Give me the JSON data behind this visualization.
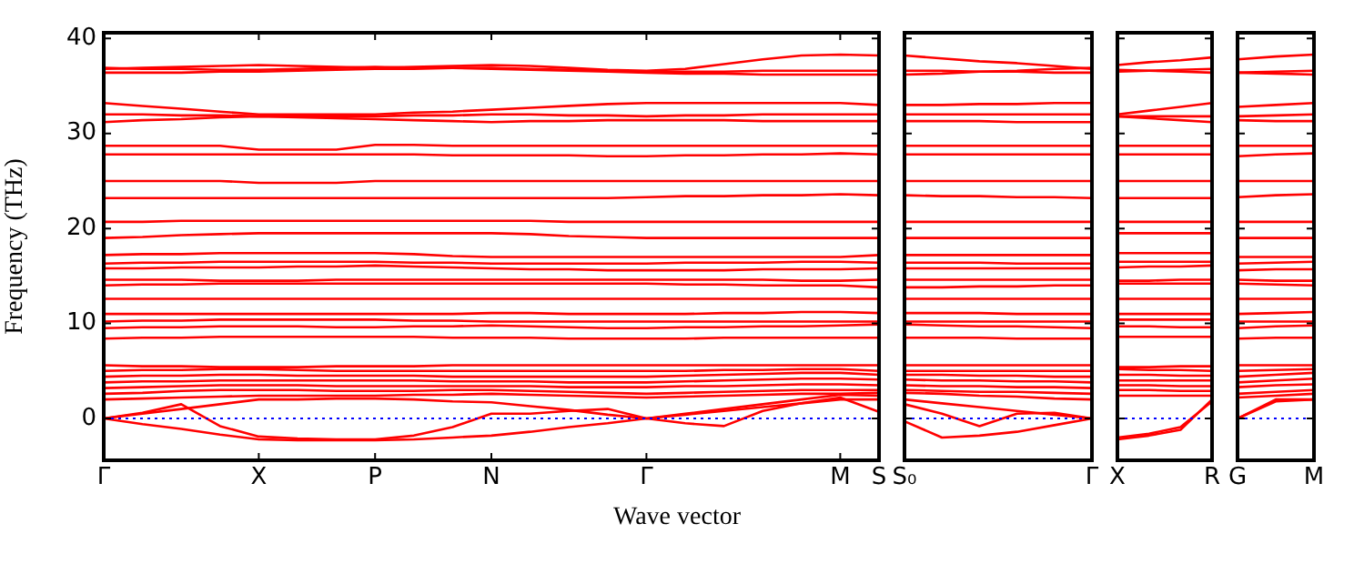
{
  "chart_data": [
    {
      "type": "line",
      "xlabel": "Wave vector",
      "ylabel": "Frequency (THz)",
      "categories": [
        "Γ",
        null,
        null,
        null,
        "X",
        null,
        null,
        "P",
        null,
        null,
        "N",
        null,
        null,
        null,
        "Γ",
        null,
        null,
        null,
        null,
        "M",
        "S"
      ],
      "ylim": [
        -4.4,
        40.6
      ],
      "yticks": [
        0,
        10,
        20,
        30,
        40
      ],
      "grid": false,
      "legend": false,
      "marker": "none",
      "line_style": "solid",
      "ref_lines": [
        {
          "axis": "y",
          "value": 0,
          "color": "#0000ff",
          "line_style": "dotted"
        }
      ],
      "series": [
        {
          "color": "#ff0000",
          "values": [
            36.4,
            36.4,
            36.4,
            36.5,
            36.5,
            36.6,
            36.7,
            36.8,
            36.8,
            36.9,
            36.9,
            36.8,
            36.7,
            36.6,
            36.5,
            36.5,
            36.5,
            36.6,
            36.6,
            36.6,
            36.6
          ]
        },
        {
          "color": "#ff0000",
          "values": [
            36.8,
            36.9,
            37.0,
            37.1,
            37.2,
            37.1,
            37.0,
            36.9,
            37.0,
            37.1,
            37.2,
            37.1,
            36.9,
            36.7,
            36.6,
            36.8,
            37.3,
            37.8,
            38.2,
            38.3,
            38.2
          ]
        },
        {
          "color": "#ff0000",
          "values": [
            36.9,
            36.8,
            36.8,
            36.7,
            36.7,
            36.8,
            36.9,
            37.0,
            36.9,
            36.9,
            36.8,
            36.7,
            36.6,
            36.5,
            36.4,
            36.3,
            36.3,
            36.2,
            36.2,
            36.2,
            36.2
          ]
        },
        {
          "color": "#ff0000",
          "values": [
            33.2,
            32.9,
            32.6,
            32.3,
            32.0,
            32.0,
            32.0,
            32.0,
            32.2,
            32.3,
            32.5,
            32.7,
            32.9,
            33.1,
            33.2,
            33.2,
            33.2,
            33.2,
            33.2,
            33.2,
            33.0
          ]
        },
        {
          "color": "#ff0000",
          "values": [
            32.0,
            32.0,
            31.9,
            31.9,
            31.8,
            31.8,
            31.8,
            31.8,
            31.9,
            31.9,
            32.0,
            32.0,
            31.9,
            31.9,
            31.8,
            31.9,
            31.9,
            32.0,
            32.0,
            32.0,
            32.0
          ]
        },
        {
          "color": "#ff0000",
          "values": [
            31.2,
            31.4,
            31.5,
            31.7,
            31.8,
            31.7,
            31.6,
            31.5,
            31.4,
            31.3,
            31.2,
            31.3,
            31.3,
            31.4,
            31.4,
            31.4,
            31.4,
            31.3,
            31.3,
            31.3,
            31.3
          ]
        },
        {
          "color": "#ff0000",
          "values": [
            28.7,
            28.7,
            28.7,
            28.7,
            28.3,
            28.3,
            28.3,
            28.8,
            28.8,
            28.7,
            28.7,
            28.7,
            28.7,
            28.7,
            28.7,
            28.7,
            28.7,
            28.7,
            28.7,
            28.7,
            28.7
          ]
        },
        {
          "color": "#ff0000",
          "values": [
            27.8,
            27.8,
            27.8,
            27.8,
            27.8,
            27.8,
            27.8,
            27.8,
            27.8,
            27.7,
            27.7,
            27.7,
            27.7,
            27.6,
            27.6,
            27.7,
            27.7,
            27.8,
            27.8,
            27.9,
            27.8
          ]
        },
        {
          "color": "#ff0000",
          "values": [
            25.0,
            25.0,
            25.0,
            25.0,
            24.8,
            24.8,
            24.8,
            25.0,
            25.0,
            25.0,
            25.0,
            25.0,
            25.0,
            25.0,
            25.0,
            25.0,
            25.0,
            25.0,
            25.0,
            25.0,
            25.0
          ]
        },
        {
          "color": "#ff0000",
          "values": [
            23.2,
            23.2,
            23.2,
            23.2,
            23.2,
            23.2,
            23.2,
            23.2,
            23.2,
            23.2,
            23.2,
            23.2,
            23.2,
            23.2,
            23.3,
            23.4,
            23.4,
            23.5,
            23.5,
            23.6,
            23.5
          ]
        },
        {
          "color": "#ff0000",
          "values": [
            20.7,
            20.7,
            20.8,
            20.8,
            20.8,
            20.8,
            20.8,
            20.8,
            20.8,
            20.8,
            20.8,
            20.8,
            20.7,
            20.7,
            20.7,
            20.7,
            20.7,
            20.7,
            20.7,
            20.7,
            20.7
          ]
        },
        {
          "color": "#ff0000",
          "values": [
            19.0,
            19.1,
            19.3,
            19.4,
            19.5,
            19.5,
            19.5,
            19.5,
            19.5,
            19.5,
            19.5,
            19.4,
            19.2,
            19.1,
            19.0,
            19.0,
            19.0,
            19.0,
            19.0,
            19.0,
            19.0
          ]
        },
        {
          "color": "#ff0000",
          "values": [
            17.2,
            17.3,
            17.3,
            17.4,
            17.4,
            17.4,
            17.4,
            17.4,
            17.3,
            17.1,
            17.0,
            17.0,
            17.0,
            17.0,
            17.0,
            17.0,
            17.0,
            17.0,
            17.0,
            17.0,
            17.2
          ]
        },
        {
          "color": "#ff0000",
          "values": [
            16.3,
            16.4,
            16.4,
            16.5,
            16.5,
            16.5,
            16.5,
            16.5,
            16.4,
            16.4,
            16.3,
            16.3,
            16.3,
            16.3,
            16.3,
            16.4,
            16.4,
            16.4,
            16.5,
            16.5,
            16.4
          ]
        },
        {
          "color": "#ff0000",
          "values": [
            15.8,
            15.8,
            15.9,
            15.9,
            15.9,
            16.0,
            16.0,
            16.1,
            16.0,
            15.9,
            15.8,
            15.7,
            15.7,
            15.6,
            15.6,
            15.6,
            15.6,
            15.7,
            15.7,
            15.7,
            15.8
          ]
        },
        {
          "color": "#ff0000",
          "values": [
            14.6,
            14.6,
            14.6,
            14.5,
            14.5,
            14.5,
            14.6,
            14.6,
            14.6,
            14.6,
            14.6,
            14.6,
            14.6,
            14.6,
            14.6,
            14.6,
            14.6,
            14.6,
            14.5,
            14.5,
            14.6
          ]
        },
        {
          "color": "#ff0000",
          "values": [
            14.0,
            14.1,
            14.1,
            14.2,
            14.2,
            14.2,
            14.2,
            14.2,
            14.2,
            14.2,
            14.2,
            14.2,
            14.2,
            14.2,
            14.2,
            14.1,
            14.1,
            14.0,
            14.0,
            14.0,
            13.8
          ]
        },
        {
          "color": "#ff0000",
          "values": [
            12.6,
            12.6,
            12.6,
            12.6,
            12.6,
            12.6,
            12.6,
            12.6,
            12.6,
            12.6,
            12.6,
            12.6,
            12.6,
            12.6,
            12.6,
            12.6,
            12.6,
            12.6,
            12.6,
            12.6,
            12.6
          ]
        },
        {
          "color": "#ff0000",
          "values": [
            11.0,
            11.0,
            11.0,
            11.0,
            11.0,
            11.0,
            11.0,
            11.0,
            11.0,
            11.0,
            11.1,
            11.1,
            11.0,
            11.0,
            11.0,
            11.0,
            11.1,
            11.1,
            11.2,
            11.2,
            11.1
          ]
        },
        {
          "color": "#ff0000",
          "values": [
            10.2,
            10.3,
            10.3,
            10.4,
            10.4,
            10.4,
            10.4,
            10.4,
            10.3,
            10.3,
            10.2,
            10.2,
            10.2,
            10.2,
            10.2,
            10.2,
            10.2,
            10.2,
            10.2,
            10.2,
            10.2
          ]
        },
        {
          "color": "#ff0000",
          "values": [
            9.5,
            9.6,
            9.6,
            9.7,
            9.7,
            9.7,
            9.6,
            9.6,
            9.7,
            9.7,
            9.8,
            9.7,
            9.6,
            9.5,
            9.5,
            9.6,
            9.6,
            9.7,
            9.7,
            9.8,
            9.9
          ]
        },
        {
          "color": "#ff0000",
          "values": [
            8.4,
            8.5,
            8.5,
            8.6,
            8.6,
            8.6,
            8.6,
            8.6,
            8.6,
            8.5,
            8.5,
            8.5,
            8.4,
            8.4,
            8.4,
            8.4,
            8.5,
            8.5,
            8.5,
            8.5,
            8.5
          ]
        },
        {
          "color": "#ff0000",
          "values": [
            5.6,
            5.5,
            5.5,
            5.4,
            5.4,
            5.4,
            5.5,
            5.5,
            5.5,
            5.6,
            5.6,
            5.6,
            5.6,
            5.6,
            5.6,
            5.6,
            5.6,
            5.6,
            5.6,
            5.6,
            5.6
          ]
        },
        {
          "color": "#ff0000",
          "values": [
            5.0,
            5.1,
            5.1,
            5.2,
            5.2,
            5.1,
            5.0,
            5.0,
            5.0,
            5.0,
            5.0,
            5.0,
            5.0,
            5.0,
            5.0,
            5.0,
            5.1,
            5.1,
            5.2,
            5.2,
            5.0
          ]
        },
        {
          "color": "#ff0000",
          "values": [
            4.4,
            4.5,
            4.5,
            4.6,
            4.6,
            4.5,
            4.5,
            4.5,
            4.5,
            4.4,
            4.4,
            4.4,
            4.4,
            4.4,
            4.4,
            4.5,
            4.6,
            4.7,
            4.8,
            4.8,
            4.6
          ]
        },
        {
          "color": "#ff0000",
          "values": [
            3.8,
            3.9,
            3.9,
            4.0,
            4.0,
            4.0,
            4.0,
            4.0,
            4.0,
            3.9,
            3.9,
            3.9,
            3.8,
            3.8,
            3.8,
            3.9,
            4.0,
            4.1,
            4.2,
            4.2,
            4.1
          ]
        },
        {
          "color": "#ff0000",
          "values": [
            3.2,
            3.3,
            3.4,
            3.5,
            3.5,
            3.5,
            3.4,
            3.4,
            3.4,
            3.4,
            3.4,
            3.4,
            3.3,
            3.3,
            3.3,
            3.4,
            3.4,
            3.5,
            3.6,
            3.6,
            3.5
          ]
        },
        {
          "color": "#ff0000",
          "values": [
            2.6,
            2.7,
            2.9,
            3.0,
            3.0,
            3.0,
            2.9,
            2.9,
            2.9,
            3.0,
            3.0,
            2.9,
            2.8,
            2.7,
            2.6,
            2.7,
            2.8,
            2.9,
            3.0,
            3.0,
            3.0
          ]
        },
        {
          "color": "#ff0000",
          "values": [
            2.0,
            2.1,
            2.2,
            2.3,
            2.4,
            2.4,
            2.4,
            2.4,
            2.5,
            2.5,
            2.6,
            2.5,
            2.4,
            2.3,
            2.2,
            2.3,
            2.4,
            2.5,
            2.6,
            2.6,
            2.7
          ]
        },
        {
          "color": "#ff0000",
          "values": [
            0,
            -0.6,
            -1.1,
            -1.7,
            -2.2,
            -2.3,
            -2.3,
            -2.3,
            -2.2,
            -2.0,
            -1.8,
            -1.4,
            -0.9,
            -0.5,
            0,
            0.5,
            1.0,
            1.5,
            2.0,
            2.5,
            2.4
          ]
        },
        {
          "color": "#ff0000",
          "values": [
            0,
            0.6,
            1.5,
            -0.8,
            -1.9,
            -2.1,
            -2.2,
            -2.2,
            -1.8,
            -0.9,
            0.5,
            0.5,
            0.8,
            1.0,
            0,
            -0.5,
            -0.8,
            0.8,
            1.6,
            2.2,
            0.7
          ]
        },
        {
          "color": "#ff0000",
          "values": [
            0,
            0.5,
            1.0,
            1.5,
            2.0,
            2.0,
            2.1,
            2.1,
            2.0,
            1.8,
            1.7,
            1.3,
            0.9,
            0.4,
            0,
            0.4,
            0.8,
            1.2,
            1.6,
            2.0,
            2.0
          ]
        }
      ]
    },
    {
      "type": "line",
      "categories": [
        "S₀",
        null,
        null,
        null,
        null,
        "Γ"
      ],
      "ylim": [
        -4.4,
        40.6
      ],
      "yticks": [
        0,
        10,
        20,
        30,
        40
      ],
      "tick_labels": "x",
      "grid": false,
      "legend": false,
      "marker": "none",
      "line_style": "solid",
      "ref_lines": [
        {
          "axis": "y",
          "value": 0,
          "color": "#0000ff",
          "line_style": "dotted"
        }
      ],
      "series": [
        {
          "color": "#ff0000",
          "values": [
            36.6,
            36.6,
            36.5,
            36.5,
            36.4,
            36.4
          ]
        },
        {
          "color": "#ff0000",
          "values": [
            38.2,
            37.9,
            37.6,
            37.4,
            37.1,
            36.8
          ]
        },
        {
          "color": "#ff0000",
          "values": [
            36.2,
            36.3,
            36.5,
            36.6,
            36.8,
            36.9
          ]
        },
        {
          "color": "#ff0000",
          "values": [
            33.0,
            33.0,
            33.1,
            33.1,
            33.2,
            33.2
          ]
        },
        {
          "color": "#ff0000",
          "values": [
            32.0,
            32.0,
            32.0,
            32.0,
            32.0,
            32.0
          ]
        },
        {
          "color": "#ff0000",
          "values": [
            31.3,
            31.3,
            31.3,
            31.2,
            31.2,
            31.2
          ]
        },
        {
          "color": "#ff0000",
          "values": [
            28.7,
            28.7,
            28.7,
            28.7,
            28.7,
            28.7
          ]
        },
        {
          "color": "#ff0000",
          "values": [
            27.8,
            27.8,
            27.8,
            27.8,
            27.8,
            27.8
          ]
        },
        {
          "color": "#ff0000",
          "values": [
            25.0,
            25.0,
            25.0,
            25.0,
            25.0,
            25.0
          ]
        },
        {
          "color": "#ff0000",
          "values": [
            23.5,
            23.4,
            23.4,
            23.3,
            23.3,
            23.2
          ]
        },
        {
          "color": "#ff0000",
          "values": [
            20.7,
            20.7,
            20.7,
            20.7,
            20.7,
            20.7
          ]
        },
        {
          "color": "#ff0000",
          "values": [
            19.0,
            19.0,
            19.0,
            19.0,
            19.0,
            19.0
          ]
        },
        {
          "color": "#ff0000",
          "values": [
            17.2,
            17.2,
            17.2,
            17.2,
            17.2,
            17.2
          ]
        },
        {
          "color": "#ff0000",
          "values": [
            16.4,
            16.4,
            16.4,
            16.3,
            16.3,
            16.3
          ]
        },
        {
          "color": "#ff0000",
          "values": [
            15.8,
            15.8,
            15.8,
            15.8,
            15.8,
            15.8
          ]
        },
        {
          "color": "#ff0000",
          "values": [
            14.6,
            14.6,
            14.6,
            14.6,
            14.6,
            14.6
          ]
        },
        {
          "color": "#ff0000",
          "values": [
            13.8,
            13.8,
            13.9,
            13.9,
            14.0,
            14.0
          ]
        },
        {
          "color": "#ff0000",
          "values": [
            12.6,
            12.6,
            12.6,
            12.6,
            12.6,
            12.6
          ]
        },
        {
          "color": "#ff0000",
          "values": [
            11.1,
            11.1,
            11.1,
            11.0,
            11.0,
            11.0
          ]
        },
        {
          "color": "#ff0000",
          "values": [
            10.2,
            10.2,
            10.2,
            10.2,
            10.2,
            10.2
          ]
        },
        {
          "color": "#ff0000",
          "values": [
            9.9,
            9.8,
            9.7,
            9.7,
            9.6,
            9.5
          ]
        },
        {
          "color": "#ff0000",
          "values": [
            8.5,
            8.5,
            8.5,
            8.4,
            8.4,
            8.4
          ]
        },
        {
          "color": "#ff0000",
          "values": [
            5.6,
            5.6,
            5.6,
            5.6,
            5.6,
            5.6
          ]
        },
        {
          "color": "#ff0000",
          "values": [
            5.0,
            5.0,
            5.0,
            5.0,
            5.0,
            5.0
          ]
        },
        {
          "color": "#ff0000",
          "values": [
            4.6,
            4.6,
            4.5,
            4.5,
            4.4,
            4.4
          ]
        },
        {
          "color": "#ff0000",
          "values": [
            4.1,
            4.0,
            4.0,
            3.9,
            3.9,
            3.8
          ]
        },
        {
          "color": "#ff0000",
          "values": [
            3.5,
            3.4,
            3.4,
            3.3,
            3.3,
            3.2
          ]
        },
        {
          "color": "#ff0000",
          "values": [
            3.0,
            2.9,
            2.8,
            2.8,
            2.7,
            2.6
          ]
        },
        {
          "color": "#ff0000",
          "values": [
            2.7,
            2.6,
            2.4,
            2.3,
            2.1,
            2.0
          ]
        },
        {
          "color": "#ff0000",
          "values": [
            -0.3,
            -2.0,
            -1.8,
            -1.4,
            -0.7,
            0
          ]
        },
        {
          "color": "#ff0000",
          "values": [
            1.5,
            0.5,
            -0.8,
            0.5,
            0.6,
            0
          ]
        },
        {
          "color": "#ff0000",
          "values": [
            2.0,
            1.6,
            1.2,
            0.8,
            0.4,
            0
          ]
        }
      ]
    },
    {
      "type": "line",
      "categories": [
        "X",
        null,
        null,
        "R"
      ],
      "ylim": [
        -4.4,
        40.6
      ],
      "yticks": [
        0,
        10,
        20,
        30,
        40
      ],
      "tick_labels": "x",
      "grid": false,
      "legend": false,
      "marker": "none",
      "line_style": "solid",
      "ref_lines": [
        {
          "axis": "y",
          "value": 0,
          "color": "#0000ff",
          "line_style": "dotted"
        }
      ],
      "series": [
        {
          "color": "#ff0000",
          "values": [
            36.5,
            36.6,
            36.7,
            36.8
          ]
        },
        {
          "color": "#ff0000",
          "values": [
            37.2,
            37.5,
            37.7,
            38.0
          ]
        },
        {
          "color": "#ff0000",
          "values": [
            36.7,
            36.6,
            36.5,
            36.4
          ]
        },
        {
          "color": "#ff0000",
          "values": [
            32.0,
            32.4,
            32.8,
            33.2
          ]
        },
        {
          "color": "#ff0000",
          "values": [
            31.8,
            31.8,
            31.8,
            31.8
          ]
        },
        {
          "color": "#ff0000",
          "values": [
            31.8,
            31.6,
            31.4,
            31.2
          ]
        },
        {
          "color": "#ff0000",
          "values": [
            28.7,
            28.7,
            28.7,
            28.7
          ]
        },
        {
          "color": "#ff0000",
          "values": [
            27.8,
            27.8,
            27.8,
            27.8
          ]
        },
        {
          "color": "#ff0000",
          "values": [
            25.0,
            25.0,
            25.0,
            25.0
          ]
        },
        {
          "color": "#ff0000",
          "values": [
            23.2,
            23.2,
            23.2,
            23.2
          ]
        },
        {
          "color": "#ff0000",
          "values": [
            20.7,
            20.7,
            20.7,
            20.7
          ]
        },
        {
          "color": "#ff0000",
          "values": [
            19.5,
            19.5,
            19.5,
            19.5
          ]
        },
        {
          "color": "#ff0000",
          "values": [
            17.4,
            17.4,
            17.4,
            17.4
          ]
        },
        {
          "color": "#ff0000",
          "values": [
            16.5,
            16.5,
            16.5,
            16.5
          ]
        },
        {
          "color": "#ff0000",
          "values": [
            15.9,
            16.0,
            16.0,
            16.1
          ]
        },
        {
          "color": "#ff0000",
          "values": [
            14.5,
            14.5,
            14.6,
            14.6
          ]
        },
        {
          "color": "#ff0000",
          "values": [
            14.2,
            14.2,
            14.2,
            14.2
          ]
        },
        {
          "color": "#ff0000",
          "values": [
            12.6,
            12.6,
            12.6,
            12.6
          ]
        },
        {
          "color": "#ff0000",
          "values": [
            11.0,
            11.0,
            11.0,
            11.0
          ]
        },
        {
          "color": "#ff0000",
          "values": [
            10.4,
            10.4,
            10.4,
            10.4
          ]
        },
        {
          "color": "#ff0000",
          "values": [
            9.7,
            9.7,
            9.6,
            9.6
          ]
        },
        {
          "color": "#ff0000",
          "values": [
            8.6,
            8.6,
            8.6,
            8.6
          ]
        },
        {
          "color": "#ff0000",
          "values": [
            5.4,
            5.4,
            5.5,
            5.5
          ]
        },
        {
          "color": "#ff0000",
          "values": [
            5.2,
            5.1,
            5.1,
            5.0
          ]
        },
        {
          "color": "#ff0000",
          "values": [
            4.6,
            4.6,
            4.5,
            4.5
          ]
        },
        {
          "color": "#ff0000",
          "values": [
            4.0,
            4.0,
            4.0,
            4.0
          ]
        },
        {
          "color": "#ff0000",
          "values": [
            3.5,
            3.5,
            3.4,
            3.4
          ]
        },
        {
          "color": "#ff0000",
          "values": [
            3.0,
            3.0,
            2.9,
            2.9
          ]
        },
        {
          "color": "#ff0000",
          "values": [
            2.4,
            2.4,
            2.4,
            2.4
          ]
        },
        {
          "color": "#ff0000",
          "values": [
            -2.2,
            -1.8,
            -1.2,
            2.0
          ]
        },
        {
          "color": "#ff0000",
          "values": [
            -2.0,
            -1.6,
            -0.9,
            1.8
          ]
        }
      ]
    },
    {
      "type": "line",
      "categories": [
        "G",
        null,
        "M"
      ],
      "ylim": [
        -4.4,
        40.6
      ],
      "yticks": [
        0,
        10,
        20,
        30,
        40
      ],
      "tick_labels": "x",
      "grid": false,
      "legend": false,
      "marker": "none",
      "line_style": "solid",
      "ref_lines": [
        {
          "axis": "y",
          "value": 0,
          "color": "#0000ff",
          "line_style": "dotted"
        }
      ],
      "series": [
        {
          "color": "#ff0000",
          "values": [
            36.4,
            36.5,
            36.6
          ]
        },
        {
          "color": "#ff0000",
          "values": [
            37.8,
            38.1,
            38.3
          ]
        },
        {
          "color": "#ff0000",
          "values": [
            36.4,
            36.3,
            36.2
          ]
        },
        {
          "color": "#ff0000",
          "values": [
            32.8,
            33.0,
            33.2
          ]
        },
        {
          "color": "#ff0000",
          "values": [
            31.8,
            31.9,
            32.0
          ]
        },
        {
          "color": "#ff0000",
          "values": [
            31.4,
            31.3,
            31.3
          ]
        },
        {
          "color": "#ff0000",
          "values": [
            28.7,
            28.7,
            28.7
          ]
        },
        {
          "color": "#ff0000",
          "values": [
            27.6,
            27.8,
            27.9
          ]
        },
        {
          "color": "#ff0000",
          "values": [
            25.0,
            25.0,
            25.0
          ]
        },
        {
          "color": "#ff0000",
          "values": [
            23.3,
            23.5,
            23.6
          ]
        },
        {
          "color": "#ff0000",
          "values": [
            20.7,
            20.7,
            20.7
          ]
        },
        {
          "color": "#ff0000",
          "values": [
            19.0,
            19.0,
            19.0
          ]
        },
        {
          "color": "#ff0000",
          "values": [
            17.0,
            17.0,
            17.0
          ]
        },
        {
          "color": "#ff0000",
          "values": [
            16.3,
            16.4,
            16.5
          ]
        },
        {
          "color": "#ff0000",
          "values": [
            15.6,
            15.7,
            15.7
          ]
        },
        {
          "color": "#ff0000",
          "values": [
            14.6,
            14.5,
            14.5
          ]
        },
        {
          "color": "#ff0000",
          "values": [
            14.2,
            14.1,
            14.0
          ]
        },
        {
          "color": "#ff0000",
          "values": [
            12.6,
            12.6,
            12.6
          ]
        },
        {
          "color": "#ff0000",
          "values": [
            11.0,
            11.1,
            11.2
          ]
        },
        {
          "color": "#ff0000",
          "values": [
            10.2,
            10.2,
            10.2
          ]
        },
        {
          "color": "#ff0000",
          "values": [
            9.5,
            9.7,
            9.8
          ]
        },
        {
          "color": "#ff0000",
          "values": [
            8.4,
            8.5,
            8.5
          ]
        },
        {
          "color": "#ff0000",
          "values": [
            5.6,
            5.6,
            5.6
          ]
        },
        {
          "color": "#ff0000",
          "values": [
            5.0,
            5.1,
            5.2
          ]
        },
        {
          "color": "#ff0000",
          "values": [
            4.4,
            4.6,
            4.8
          ]
        },
        {
          "color": "#ff0000",
          "values": [
            3.8,
            4.0,
            4.2
          ]
        },
        {
          "color": "#ff0000",
          "values": [
            3.3,
            3.5,
            3.6
          ]
        },
        {
          "color": "#ff0000",
          "values": [
            2.6,
            2.8,
            3.0
          ]
        },
        {
          "color": "#ff0000",
          "values": [
            2.2,
            2.4,
            2.6
          ]
        },
        {
          "color": "#ff0000",
          "values": [
            0,
            2.0,
            2.0
          ]
        },
        {
          "color": "#ff0000",
          "values": [
            0,
            1.8,
            2.0
          ]
        }
      ]
    }
  ]
}
